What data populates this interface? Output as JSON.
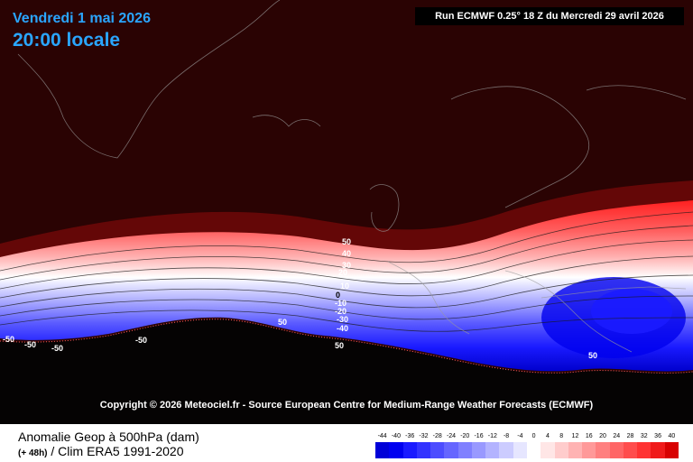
{
  "header": {
    "date": "Vendredi 1 mai 2026",
    "time": "20:00 locale",
    "run_info": "Run ECMWF 0.25° 18 Z du Mercredi 29 avril 2026"
  },
  "copyright": "Copyright © 2026 Meteociel.fr - Source European Centre for Medium-Range Weather Forecasts (ECMWF)",
  "footer": {
    "title_line1": "Anomalie Geop à 500hPa (dam)",
    "forecast_step": "(+ 48h)",
    "title_line2": " / Clim ERA5 1991-2020"
  },
  "colorbar": {
    "labels": [
      "-44",
      "-40",
      "-36",
      "-32",
      "-28",
      "-24",
      "-20",
      "-16",
      "-12",
      "-8",
      "-4",
      "0",
      "4",
      "8",
      "12",
      "16",
      "20",
      "24",
      "28",
      "32",
      "36",
      "40"
    ],
    "colors": [
      "#0000d8",
      "#0000f0",
      "#1a1aff",
      "#3333ff",
      "#4d4dff",
      "#6666ff",
      "#8080ff",
      "#9999ff",
      "#b3b3ff",
      "#ccccff",
      "#e6e6ff",
      "#ffffff",
      "#ffe6e6",
      "#ffcccc",
      "#ffb3b3",
      "#ff9999",
      "#ff8080",
      "#ff6666",
      "#ff4d4d",
      "#ff3333",
      "#f01a1a",
      "#d80000"
    ]
  },
  "contour_labels": [
    "50",
    "40",
    "30",
    "20",
    "10",
    "0",
    "-10",
    "-20",
    "-30",
    "-40",
    "50",
    "-50",
    "-50",
    "-50",
    "-50",
    "50",
    "50"
  ],
  "colors": {
    "background": "#2a0303",
    "header_text": "#2aa6ff",
    "ocean_south": "#050303"
  }
}
